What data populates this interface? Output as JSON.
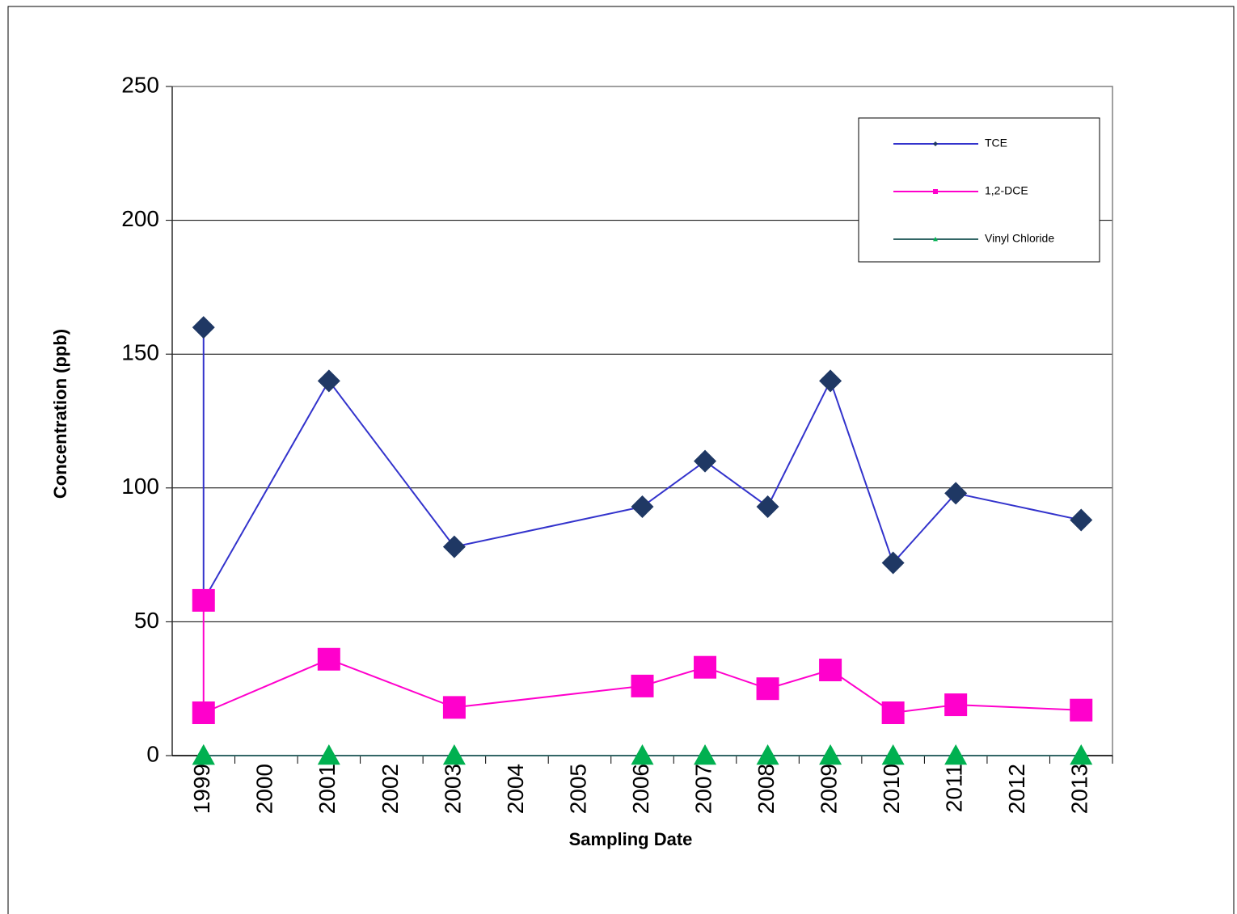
{
  "chart_data": {
    "type": "line",
    "x_label": "Sampling Date",
    "y_label": "Concentration (ppb)",
    "x": [
      1999,
      1999,
      2001,
      2003,
      2006,
      2007,
      2008,
      2009,
      2010,
      2011,
      2013
    ],
    "xlim": [
      1998.5,
      2013.5
    ],
    "xticks": [
      1999,
      2000,
      2001,
      2002,
      2003,
      2004,
      2005,
      2006,
      2007,
      2008,
      2009,
      2010,
      2011,
      2012,
      2013
    ],
    "ylim": [
      0,
      250
    ],
    "yticks": [
      0,
      50,
      100,
      150,
      200,
      250
    ],
    "grid": true,
    "legend": "upper right",
    "series": [
      {
        "name": "TCE",
        "color": "#3333cc",
        "marker_color": "#1f3864",
        "marker": "diamond",
        "values": [
          160,
          58,
          140,
          78,
          93,
          110,
          93,
          140,
          72,
          98,
          88
        ]
      },
      {
        "name": "1,2-DCE",
        "color": "#ff00cc",
        "marker_color": "#ff00cc",
        "marker": "square",
        "values": [
          58,
          16,
          36,
          18,
          26,
          33,
          25,
          32,
          16,
          19,
          17
        ]
      },
      {
        "name": "Vinyl Chloride",
        "color": "#336666",
        "marker_color": "#00b050",
        "marker": "triangle",
        "values": [
          0,
          0,
          0,
          0,
          0,
          0,
          0,
          0,
          0,
          0,
          0
        ]
      }
    ]
  }
}
